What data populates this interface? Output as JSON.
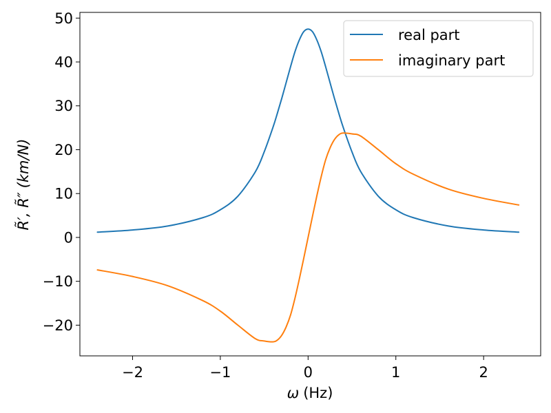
{
  "chart_data": {
    "type": "line",
    "title": "",
    "xlabel": "ω (Hz)",
    "xlabel_symbol": "ω",
    "xlabel_unit": "(Hz)",
    "ylabel": "R̃′, R̃″ (km/N)",
    "ylabel_symbols": "R̃′, R̃″",
    "ylabel_unit": "(km/N)",
    "xlim": [
      -2.6,
      2.65
    ],
    "ylim": [
      -27,
      51.3
    ],
    "xticks": [
      -2,
      -1,
      0,
      1,
      2
    ],
    "xtick_labels": [
      "−2",
      "−1",
      "0",
      "1",
      "2"
    ],
    "yticks": [
      -20,
      -10,
      0,
      10,
      20,
      30,
      40,
      50
    ],
    "ytick_labels": [
      "−20",
      "−10",
      "0",
      "10",
      "20",
      "30",
      "40",
      "50"
    ],
    "grid": false,
    "legend_position": "top-right",
    "x": [
      -2.4,
      -2.0,
      -1.6,
      -1.2,
      -1.0,
      -0.8,
      -0.6,
      -0.5,
      -0.4,
      -0.35,
      -0.3,
      -0.25,
      -0.2,
      -0.15,
      -0.1,
      -0.05,
      0.0,
      0.05,
      0.1,
      0.15,
      0.2,
      0.25,
      0.3,
      0.35,
      0.4,
      0.5,
      0.6,
      0.8,
      1.0,
      1.2,
      1.6,
      2.0,
      2.4
    ],
    "series": [
      {
        "name": "real part",
        "color": "#1f77b4",
        "values": [
          1.2,
          1.7,
          2.6,
          4.5,
          6.3,
          9.4,
          15.0,
          19.5,
          25.1,
          28.3,
          31.7,
          35.3,
          38.9,
          42.3,
          45.0,
          46.9,
          47.5,
          46.9,
          45.0,
          42.3,
          38.9,
          35.3,
          31.7,
          28.3,
          25.1,
          19.5,
          15.0,
          9.4,
          6.3,
          4.5,
          2.6,
          1.7,
          1.2
        ]
      },
      {
        "name": "imaginary part",
        "color": "#ff7f0e",
        "values": [
          -7.4,
          -8.9,
          -11.0,
          -14.4,
          -16.8,
          -20.0,
          -23.1,
          -23.6,
          -23.8,
          -23.4,
          -22.3,
          -20.4,
          -17.7,
          -13.9,
          -9.5,
          -4.8,
          0.0,
          4.8,
          9.5,
          13.9,
          17.7,
          20.4,
          22.3,
          23.4,
          23.8,
          23.6,
          23.1,
          20.0,
          16.8,
          14.4,
          11.0,
          8.9,
          7.4
        ]
      }
    ]
  }
}
